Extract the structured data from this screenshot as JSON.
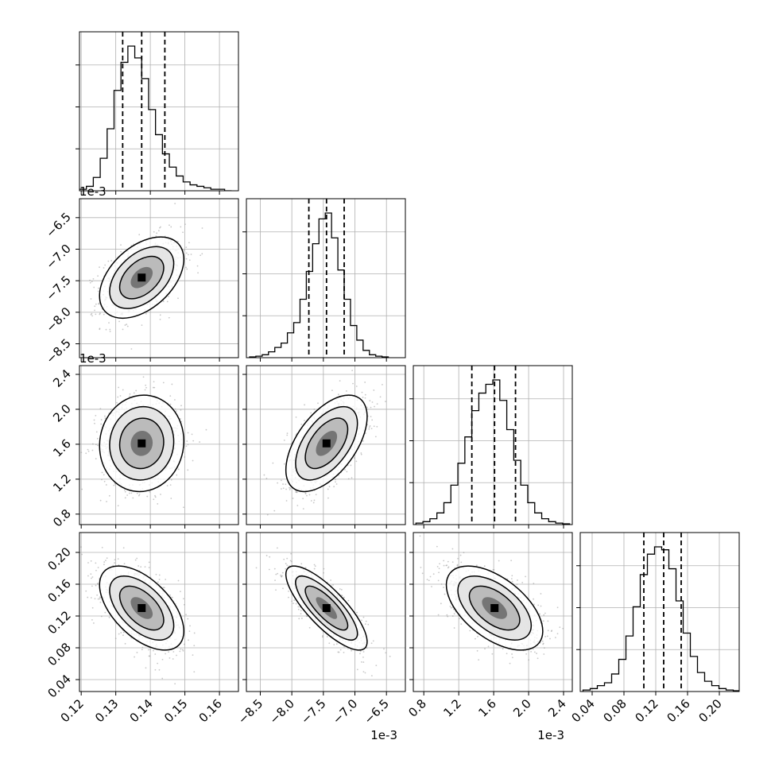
{
  "chart_data": {
    "type": "corner",
    "title": "",
    "grid": true,
    "n_params": 4,
    "quantiles": [
      0.16,
      0.5,
      0.84
    ],
    "offset_text": "1e-3",
    "params": [
      {
        "ticks": [
          0.12,
          0.13,
          0.14,
          0.15,
          0.16
        ],
        "tick_labels": [
          "0.12",
          "0.13",
          "0.14",
          "0.15",
          "0.16"
        ],
        "range": [
          0.1195,
          0.1655
        ],
        "mean": 0.1375,
        "sd": 0.0053,
        "quantile_values": [
          0.132,
          0.1375,
          0.1442
        ],
        "hist_bins": [
          0.1205,
          0.1225,
          0.1245,
          0.1265,
          0.1285,
          0.1305,
          0.1325,
          0.1345,
          0.1365,
          0.1385,
          0.1405,
          0.1425,
          0.1445,
          0.1465,
          0.1485,
          0.1505,
          0.1525,
          0.1545,
          0.1565,
          0.1585,
          0.1605,
          0.1625
        ],
        "hist_counts": [
          1,
          3,
          9,
          22,
          42,
          68,
          87,
          98,
          90,
          76,
          55,
          38,
          25,
          16,
          10,
          6,
          4,
          3,
          2,
          1,
          1,
          0
        ],
        "offset_label": ""
      },
      {
        "ticks": [
          -8.5,
          -8.0,
          -7.5,
          -7.0,
          -6.5
        ],
        "tick_labels": [
          "−8.5",
          "−8.0",
          "−7.5",
          "−7.0",
          "−6.5"
        ],
        "range": [
          -8.72,
          -6.2
        ],
        "mean": -7.45,
        "sd": 0.28,
        "quantile_values": [
          -7.73,
          -7.45,
          -7.17
        ],
        "hist_bins": [
          -8.62,
          -8.52,
          -8.42,
          -8.32,
          -8.22,
          -8.12,
          -8.02,
          -7.92,
          -7.82,
          -7.72,
          -7.62,
          -7.52,
          -7.42,
          -7.32,
          -7.22,
          -7.12,
          -7.02,
          -6.92,
          -6.82,
          -6.72,
          -6.62,
          -6.52
        ],
        "hist_counts": [
          0.5,
          1,
          2,
          4,
          7,
          10,
          17,
          24,
          40,
          59,
          78,
          95,
          99,
          82,
          60,
          40,
          22,
          12,
          5,
          2,
          1,
          0.5
        ],
        "offset_label": "1e-3"
      },
      {
        "ticks": [
          0.8,
          1.2,
          1.6,
          2.0,
          2.4
        ],
        "tick_labels": [
          "0.8",
          "1.2",
          "1.6",
          "2.0",
          "2.4"
        ],
        "range": [
          0.68,
          2.5
        ],
        "mean": 1.61,
        "sd": 0.24,
        "quantile_values": [
          1.35,
          1.61,
          1.85
        ],
        "hist_bins": [
          0.75,
          0.83,
          0.91,
          0.99,
          1.07,
          1.15,
          1.23,
          1.31,
          1.39,
          1.47,
          1.55,
          1.63,
          1.71,
          1.79,
          1.87,
          1.95,
          2.03,
          2.11,
          2.19,
          2.27,
          2.35,
          2.43
        ],
        "hist_counts": [
          1,
          2,
          4,
          8,
          15,
          27,
          42,
          60,
          78,
          90,
          96,
          99,
          85,
          65,
          44,
          27,
          15,
          8,
          4,
          2,
          1,
          0.5
        ],
        "offset_label": "1e-3"
      },
      {
        "ticks": [
          0.04,
          0.08,
          0.12,
          0.16,
          0.2
        ],
        "tick_labels": [
          "0.04",
          "0.08",
          "0.12",
          "0.16",
          "0.20"
        ],
        "range": [
          0.025,
          0.225
        ],
        "mean": 0.13,
        "sd": 0.023,
        "quantile_values": [
          0.105,
          0.13,
          0.152
        ],
        "hist_bins": [
          0.033,
          0.042,
          0.051,
          0.06,
          0.069,
          0.078,
          0.087,
          0.096,
          0.105,
          0.114,
          0.123,
          0.132,
          0.141,
          0.15,
          0.159,
          0.168,
          0.177,
          0.186,
          0.195,
          0.204,
          0.213,
          0.222
        ],
        "hist_counts": [
          1,
          2,
          4,
          6,
          12,
          22,
          38,
          58,
          80,
          94,
          99,
          97,
          84,
          62,
          40,
          24,
          13,
          7,
          4,
          2,
          1,
          0.5
        ],
        "offset_label": ""
      }
    ],
    "correlations": [
      [
        1,
        0.45,
        0.05,
        -0.55
      ],
      [
        0.45,
        1,
        0.55,
        -0.8
      ],
      [
        0.05,
        0.55,
        1,
        -0.55
      ],
      [
        -0.55,
        -0.8,
        -0.55,
        1
      ]
    ]
  }
}
